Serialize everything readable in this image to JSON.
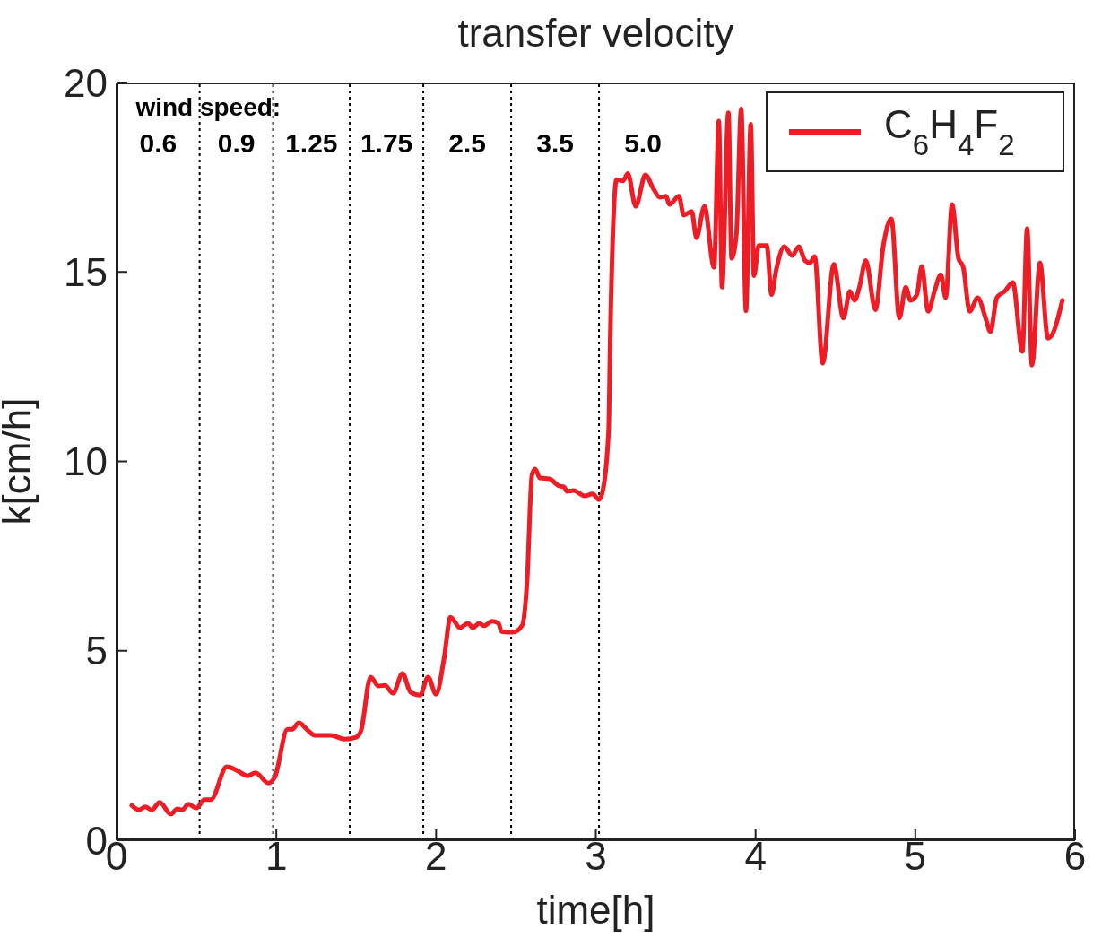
{
  "chart_data": {
    "type": "line",
    "title": "transfer velocity",
    "xlabel": "time[h]",
    "ylabel": "k[cm/h]",
    "xlim": [
      0,
      6
    ],
    "xticks": [
      0,
      1,
      2,
      3,
      4,
      5,
      6
    ],
    "ylim": [
      0,
      20
    ],
    "yticks": [
      0,
      5,
      10,
      15,
      20
    ],
    "grid": false,
    "legend": "top right",
    "marker": "none",
    "line_style": "solid",
    "series": [
      {
        "name": "C$_{6}$H$_{4}$F$_{2}$",
        "color": "#ee1c25",
        "x": [
          0.095,
          0.14,
          0.18,
          0.22,
          0.27,
          0.34,
          0.38,
          0.41,
          0.45,
          0.5,
          0.55,
          0.59,
          0.69,
          0.75,
          0.82,
          0.87,
          0.95,
          0.99,
          1.07,
          1.1,
          1.14,
          1.2,
          1.24,
          1.34,
          1.43,
          1.5,
          1.53,
          1.59,
          1.64,
          1.68,
          1.73,
          1.79,
          1.84,
          1.9,
          1.95,
          2.0,
          2.05,
          2.09,
          2.15,
          2.2,
          2.23,
          2.27,
          2.3,
          2.35,
          2.39,
          2.41,
          2.48,
          2.54,
          2.57,
          2.6,
          2.62,
          2.65,
          2.71,
          2.77,
          2.8,
          2.82,
          2.86,
          2.93,
          2.98,
          3.02,
          3.04,
          3.08,
          3.09,
          3.13,
          3.17,
          3.2,
          3.25,
          3.31,
          3.36,
          3.4,
          3.44,
          3.46,
          3.52,
          3.55,
          3.6,
          3.63,
          3.68,
          3.74,
          3.77,
          3.79,
          3.83,
          3.85,
          3.88,
          3.91,
          3.94,
          3.97,
          3.99,
          4.02,
          4.07,
          4.1,
          4.13,
          4.18,
          4.23,
          4.27,
          4.31,
          4.34,
          4.37,
          4.42,
          4.49,
          4.55,
          4.59,
          4.62,
          4.65,
          4.69,
          4.75,
          4.8,
          4.85,
          4.9,
          4.94,
          4.97,
          5.01,
          5.04,
          5.08,
          5.12,
          5.16,
          5.19,
          5.23,
          5.27,
          5.3,
          5.34,
          5.39,
          5.44,
          5.47,
          5.51,
          5.56,
          5.61,
          5.67,
          5.7,
          5.73,
          5.78,
          5.83,
          5.86,
          5.92
        ],
        "values": [
          0.92,
          0.8,
          0.88,
          0.8,
          1.0,
          0.69,
          0.83,
          0.8,
          0.95,
          0.85,
          1.07,
          1.07,
          1.94,
          1.85,
          1.7,
          1.78,
          1.51,
          1.66,
          2.93,
          2.93,
          3.1,
          2.89,
          2.77,
          2.77,
          2.67,
          2.72,
          2.89,
          4.31,
          4.07,
          4.09,
          3.88,
          4.4,
          3.91,
          3.83,
          4.31,
          3.85,
          4.8,
          5.89,
          5.61,
          5.73,
          5.61,
          5.73,
          5.66,
          5.78,
          5.73,
          5.51,
          5.49,
          5.68,
          6.86,
          9.63,
          9.8,
          9.56,
          9.54,
          9.35,
          9.33,
          9.21,
          9.23,
          9.09,
          9.14,
          8.99,
          9.16,
          10.8,
          13.2,
          17.44,
          17.4,
          17.6,
          16.73,
          17.56,
          17.2,
          16.97,
          17.0,
          16.78,
          17.0,
          16.5,
          16.6,
          15.9,
          16.73,
          15.12,
          18.98,
          14.6,
          19.2,
          15.36,
          16.0,
          19.3,
          13.97,
          18.9,
          14.9,
          15.7,
          15.7,
          14.4,
          15.07,
          15.67,
          15.43,
          15.67,
          15.3,
          15.24,
          15.41,
          12.59,
          15.2,
          13.78,
          14.49,
          14.25,
          14.6,
          15.3,
          14.0,
          15.7,
          16.4,
          13.78,
          14.6,
          14.25,
          14.4,
          15.15,
          13.96,
          14.49,
          14.93,
          14.32,
          16.78,
          15.36,
          15.12,
          13.96,
          14.32,
          13.78,
          13.42,
          14.32,
          14.49,
          14.72,
          12.9,
          16.14,
          12.54,
          15.24,
          13.25,
          13.37,
          14.25
        ]
      }
    ],
    "ref_lines": [
      {
        "axis": "x",
        "value": 0.52,
        "color": "#000000",
        "line_style": "dotted"
      },
      {
        "axis": "x",
        "value": 0.98,
        "color": "#000000",
        "line_style": "dotted"
      },
      {
        "axis": "x",
        "value": 1.46,
        "color": "#000000",
        "line_style": "dotted"
      },
      {
        "axis": "x",
        "value": 1.92,
        "color": "#000000",
        "line_style": "dotted"
      },
      {
        "axis": "x",
        "value": 2.47,
        "color": "#000000",
        "line_style": "dotted"
      },
      {
        "axis": "x",
        "value": 3.02,
        "color": "#000000",
        "line_style": "dotted"
      }
    ],
    "annotations": [
      "wind speed:",
      "0.6",
      "0.9",
      "1.25",
      "1.75",
      "2.5",
      "3.5",
      "5.0"
    ]
  }
}
